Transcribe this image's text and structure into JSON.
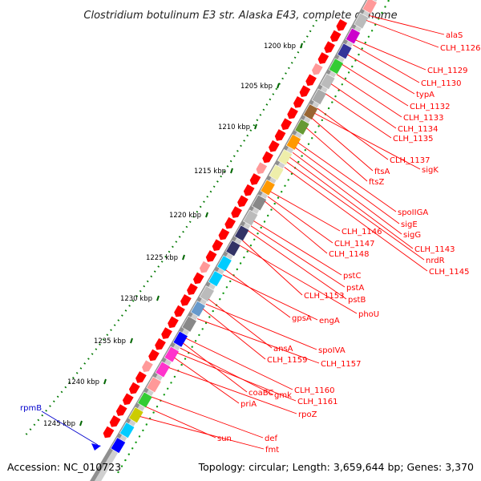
{
  "title": "Clostridium botulinum E3 str. Alaska E43, complete genome",
  "footer": {
    "accession": "Accession: NC_010723",
    "topology": "Topology: circular; Length: 3,659,644 bp; Genes: 3,370"
  },
  "ruler_ticks": [
    "1200 kbp",
    "1205 kbp",
    "1210 kbp",
    "1215 kbp",
    "1220 kbp",
    "1225 kbp",
    "1230 kbp",
    "1235 kbp",
    "1240 kbp",
    "1245 kbp"
  ],
  "right_labels": [
    "alaS",
    "CLH_1126",
    "CLH_1129",
    "CLH_1130",
    "typA",
    "CLH_1132",
    "CLH_1133",
    "CLH_1134",
    "CLH_1135",
    "CLH_1137",
    "sigK",
    "ftsA",
    "ftsZ",
    "spoIIGA",
    "sigE",
    "sigG",
    "CLH_1143",
    "nrdR",
    "CLH_1145",
    "CLH_1146",
    "CLH_1147",
    "CLH_1148",
    "pstC",
    "pstA",
    "pstB",
    "CLH_1153",
    "phoU",
    "gpsA",
    "engA",
    "ansA",
    "spoIVA",
    "CLH_1159",
    "CLH_1157",
    "CLH_1160",
    "coaBC",
    "gmk",
    "CLH_1161",
    "priA",
    "rpoZ",
    "def",
    "sun",
    "fmt"
  ],
  "left_labels": [
    "rpmB"
  ],
  "colors": {
    "gene_red": "#ff0000",
    "gene_pink": "#ff9999",
    "tick_green": "#006600",
    "backbone": "#999999",
    "label_red": "#ff0000",
    "label_blue": "#0000cc"
  }
}
